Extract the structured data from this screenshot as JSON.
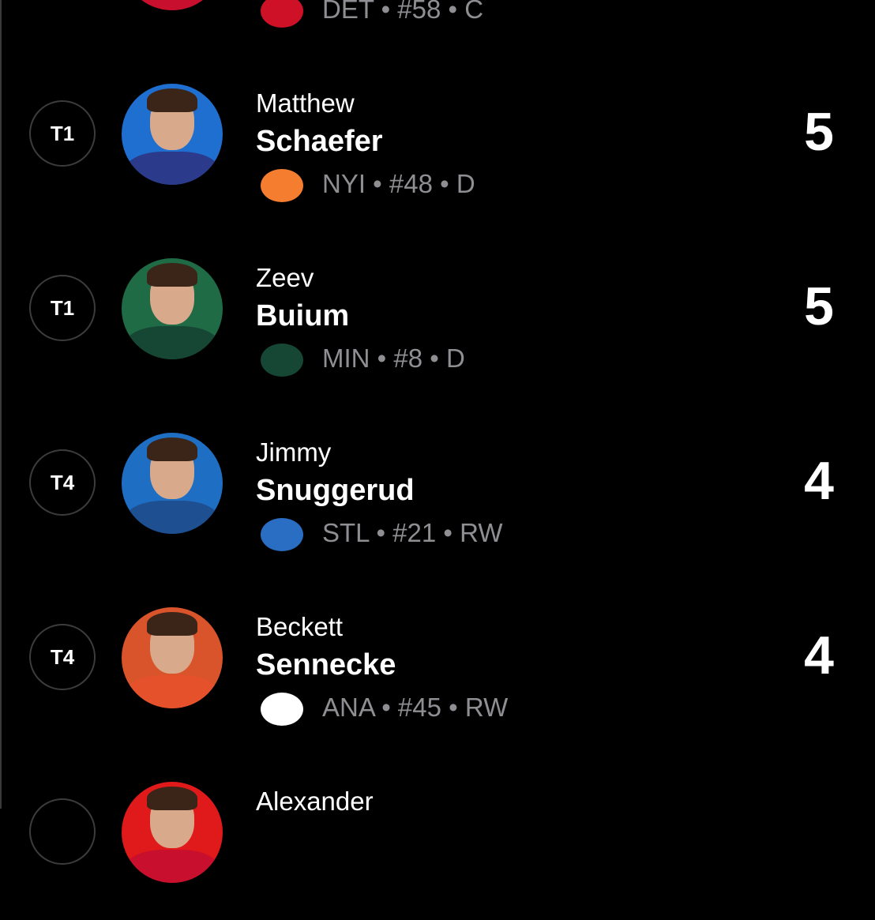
{
  "players": [
    {
      "rank": "",
      "first": "",
      "last": "",
      "team": "DET",
      "number": "#58",
      "position": "C",
      "meta": "DET • #58 • C",
      "score": "",
      "bg": "#d21f2b",
      "jersey": "#c8102e",
      "logo_color": "#ce1126"
    },
    {
      "rank": "T1",
      "first": "Matthew",
      "last": "Schaefer",
      "team": "NYI",
      "meta": "NYI • #48 • D",
      "score": "5",
      "bg": "#1f6fd1",
      "jersey": "#2b3a8a",
      "logo_color": "#f47d30"
    },
    {
      "rank": "T1",
      "first": "Zeev",
      "last": "Buium",
      "team": "MIN",
      "meta": "MIN • #8 • D",
      "score": "5",
      "bg": "#1f6b45",
      "jersey": "#154734",
      "logo_color": "#154734"
    },
    {
      "rank": "T4",
      "first": "Jimmy",
      "last": "Snuggerud",
      "team": "STL",
      "meta": "STL • #21 • RW",
      "score": "4",
      "bg": "#1e6fc4",
      "jersey": "#1d4f91",
      "logo_color": "#2a6ec4"
    },
    {
      "rank": "T4",
      "first": "Beckett",
      "last": "Sennecke",
      "team": "ANA",
      "meta": "ANA • #45 • RW",
      "score": "4",
      "bg": "#d9542a",
      "jersey": "#e5512b",
      "logo_color": "#ffffff"
    },
    {
      "rank": "",
      "first": "Alexander",
      "last": "",
      "team": "",
      "meta": "",
      "score": "",
      "bg": "#e01a1a",
      "jersey": "#c8102e",
      "logo_color": "#c8102e"
    }
  ]
}
